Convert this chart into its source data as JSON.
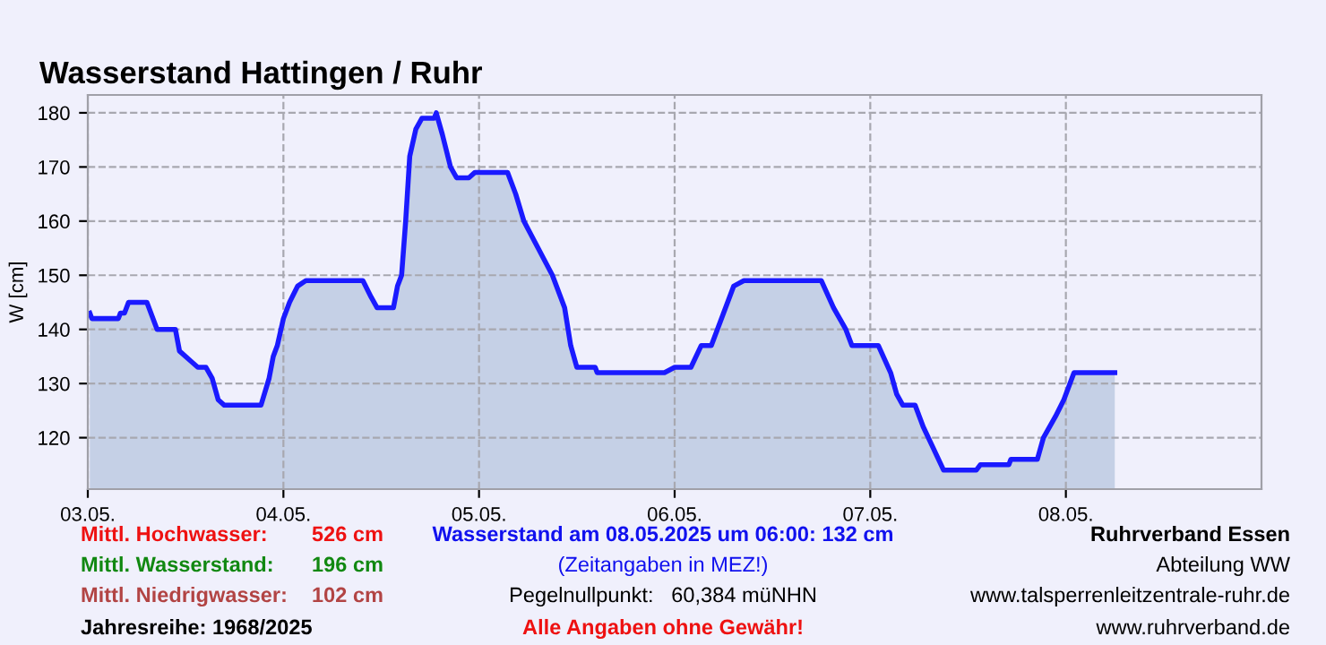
{
  "chart_data": {
    "type": "area",
    "title": "Wasserstand Hattingen / Ruhr",
    "ylabel": "W [cm]",
    "x": [
      "2025-05-03T00:15",
      "2025-05-03T00:30",
      "2025-05-03T03:45",
      "2025-05-03T04:00",
      "2025-05-03T04:30",
      "2025-05-03T05:00",
      "2025-05-03T07:15",
      "2025-05-03T08:30",
      "2025-05-03T10:45",
      "2025-05-03T11:15",
      "2025-05-03T12:45",
      "2025-05-03T13:30",
      "2025-05-03T14:30",
      "2025-05-03T15:15",
      "2025-05-03T16:00",
      "2025-05-03T16:45",
      "2025-05-03T21:15",
      "2025-05-03T22:15",
      "2025-05-03T22:45",
      "2025-05-03T23:15",
      "2025-05-04T00:00",
      "2025-05-04T00:45",
      "2025-05-04T01:45",
      "2025-05-04T02:45",
      "2025-05-04T09:45",
      "2025-05-04T10:45",
      "2025-05-04T11:30",
      "2025-05-04T13:30",
      "2025-05-04T14:00",
      "2025-05-04T14:30",
      "2025-05-04T15:00",
      "2025-05-04T15:30",
      "2025-05-04T16:15",
      "2025-05-04T17:00",
      "2025-05-04T18:30",
      "2025-05-04T18:45",
      "2025-05-04T19:30",
      "2025-05-04T20:30",
      "2025-05-04T21:15",
      "2025-05-04T22:45",
      "2025-05-04T23:30",
      "2025-05-05T03:30",
      "2025-05-05T04:30",
      "2025-05-05T05:30",
      "2025-05-05T07:15",
      "2025-05-05T09:00",
      "2025-05-05T10:30",
      "2025-05-05T11:15",
      "2025-05-05T12:00",
      "2025-05-05T14:15",
      "2025-05-05T14:30",
      "2025-05-05T22:45",
      "2025-05-06T00:00",
      "2025-05-06T02:00",
      "2025-05-06T03:15",
      "2025-05-06T04:30",
      "2025-05-06T06:00",
      "2025-05-06T07:15",
      "2025-05-06T08:30",
      "2025-05-06T18:00",
      "2025-05-06T19:30",
      "2025-05-06T21:00",
      "2025-05-06T21:45",
      "2025-05-07T01:00",
      "2025-05-07T02:30",
      "2025-05-07T03:15",
      "2025-05-07T04:00",
      "2025-05-07T05:30",
      "2025-05-07T06:30",
      "2025-05-07T07:45",
      "2025-05-07T09:00",
      "2025-05-07T13:00",
      "2025-05-07T13:30",
      "2025-05-07T17:00",
      "2025-05-07T17:15",
      "2025-05-07T20:30",
      "2025-05-07T21:15",
      "2025-05-07T22:45",
      "2025-05-07T23:45",
      "2025-05-08T01:00",
      "2025-05-08T06:00"
    ],
    "series": [
      {
        "color": "#1a1aff",
        "values": [
          143,
          142,
          142,
          143,
          143,
          145,
          145,
          140,
          140,
          136,
          134,
          133,
          133,
          131,
          127,
          126,
          126,
          131,
          135,
          137,
          142,
          145,
          148,
          149,
          149,
          146,
          144,
          144,
          148,
          150,
          160,
          172,
          177,
          179,
          179,
          180,
          176,
          170,
          168,
          168,
          169,
          169,
          165,
          160,
          155,
          150,
          144,
          137,
          133,
          133,
          132,
          132,
          133,
          133,
          137,
          137,
          143,
          148,
          149,
          149,
          144,
          140,
          137,
          137,
          132,
          128,
          126,
          126,
          122,
          118,
          114,
          114,
          115,
          115,
          116,
          116,
          120,
          124,
          127,
          132,
          132
        ]
      }
    ],
    "xlim": [
      "2025-05-03",
      "2025-05-09"
    ],
    "xticks": [
      {
        "value": "2025-05-03",
        "label": "03.05."
      },
      {
        "value": "2025-05-04",
        "label": "04.05."
      },
      {
        "value": "2025-05-05",
        "label": "05.05."
      },
      {
        "value": "2025-05-06",
        "label": "06.05."
      },
      {
        "value": "2025-05-07",
        "label": "07.05."
      },
      {
        "value": "2025-05-08",
        "label": "08.05."
      }
    ],
    "ylim": [
      110.5,
      183.3
    ],
    "yticks": [
      120,
      130,
      140,
      150,
      160,
      170,
      180
    ],
    "grid": true,
    "legend": false,
    "annotations": [
      "Mittl. Hochwasser:",
      "526 cm",
      "Wasserstand am 08.05.2025 um 06:00: 132 cm",
      "Ruhrverband Essen",
      "Mittl. Wasserstand:",
      "196 cm",
      "(Zeitangaben in MEZ!)",
      "Abteilung WW",
      "Mittl. Niedrigwasser:",
      "102 cm",
      "Pegelnullpunkt:   60,384 müNHN",
      "www.talsperrenleitzentrale-ruhr.de",
      "Jahresreihe: 1968/2025",
      "Alle Angaben ohne Gewähr!",
      "www.ruhrverband.de"
    ]
  }
}
